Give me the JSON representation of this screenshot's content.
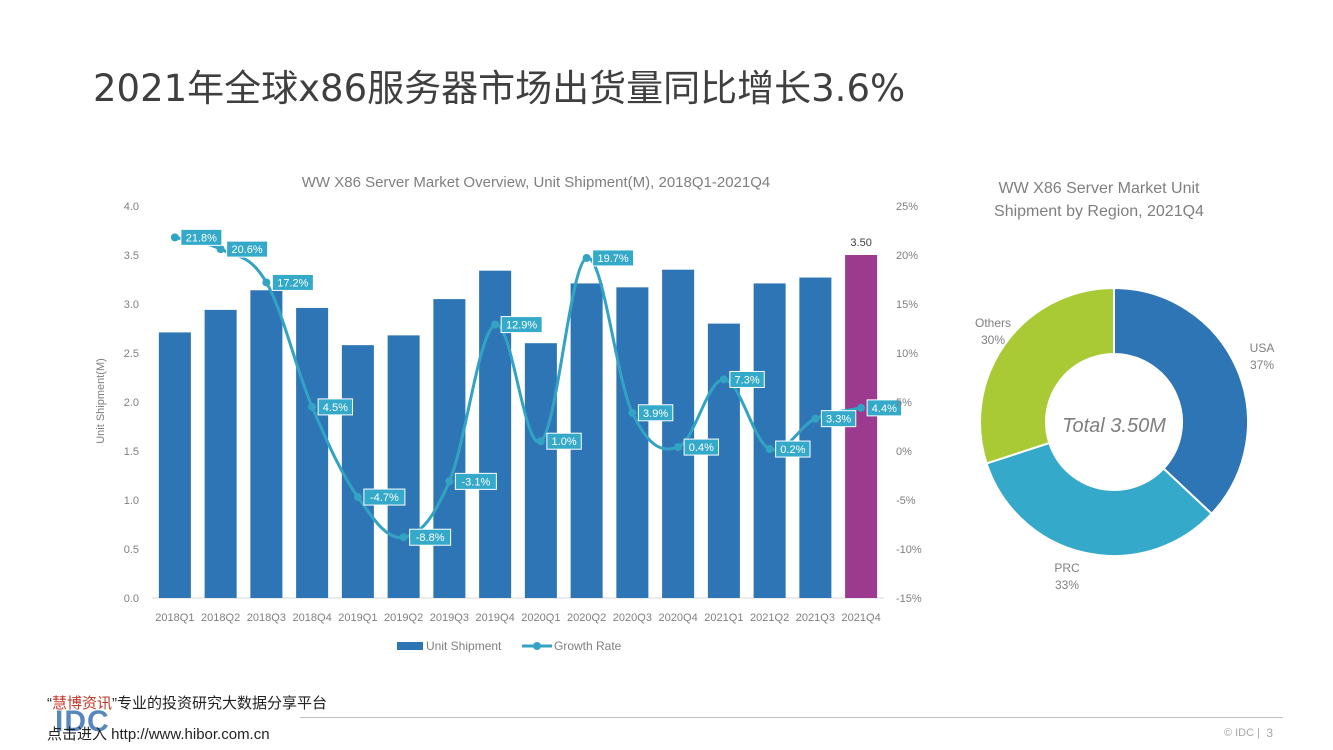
{
  "slide": {
    "title": "2021年全球x86服务器市场出货量同比增长3.6%",
    "footer": "© IDC |",
    "page_number": "3"
  },
  "watermark": {
    "line1_quote_open": "“",
    "line1_brand": "慧博资讯",
    "line1_quote_close": "”",
    "line1_rest": "专业的投资研究大数据分享平台",
    "line2": "点击进入 http://www.hibor.com.cn",
    "logo_text": "IDC"
  },
  "chart_data": [
    {
      "type": "bar",
      "title": "WW X86 Server Market Overview, Unit Shipment(M), 2018Q1-2021Q4",
      "ylabel": "Unit Shipment(M)",
      "ylim": [
        0,
        4.0
      ],
      "yticks": [
        "0.0",
        "0.5",
        "1.0",
        "1.5",
        "2.0",
        "2.5",
        "3.0",
        "3.5",
        "4.0"
      ],
      "y2lim": [
        -15,
        25
      ],
      "y2ticks": [
        "-15%",
        "-10%",
        "-5%",
        "0%",
        "5%",
        "10%",
        "15%",
        "20%",
        "25%"
      ],
      "categories": [
        "2018Q1",
        "2018Q2",
        "2018Q3",
        "2018Q4",
        "2019Q1",
        "2019Q2",
        "2019Q3",
        "2019Q4",
        "2020Q1",
        "2020Q2",
        "2020Q3",
        "2020Q4",
        "2021Q1",
        "2021Q2",
        "2021Q3",
        "2021Q4"
      ],
      "series": [
        {
          "name": "Unit Shipment",
          "kind": "bar",
          "axis": "left",
          "color": "#2e75b6",
          "highlight_color": "#9b3a8f",
          "values": [
            2.71,
            2.94,
            3.14,
            2.96,
            2.58,
            2.68,
            3.05,
            3.34,
            2.6,
            3.21,
            3.17,
            3.35,
            2.8,
            3.21,
            3.27,
            3.5
          ],
          "data_labels": [
            "",
            "",
            "",
            "",
            "",
            "",
            "",
            "",
            "",
            "",
            "",
            "",
            "",
            "",
            "",
            "3.50"
          ]
        },
        {
          "name": "Growth Rate",
          "kind": "line",
          "axis": "right",
          "color": "#33a3c4",
          "values": [
            21.8,
            20.6,
            17.2,
            4.5,
            -4.7,
            -8.8,
            -3.1,
            12.9,
            1.0,
            19.7,
            3.9,
            0.4,
            7.3,
            0.2,
            3.3,
            4.4
          ],
          "data_labels": [
            "21.8%",
            "20.6%",
            "17.2%",
            "4.5%",
            "-4.7%",
            "-8.8%",
            "-3.1%",
            "12.9%",
            "1.0%",
            "19.7%",
            "3.9%",
            "0.4%",
            "7.3%",
            "0.2%",
            "3.3%",
            "4.4%"
          ]
        }
      ],
      "legend": [
        "Unit Shipment",
        "Growth Rate"
      ],
      "legend_position": "bottom",
      "grid": false
    },
    {
      "type": "pie",
      "style": "donut",
      "title": "WW X86 Server Market Unit Shipment by Region, 2021Q4",
      "center_label": "Total 3.50M",
      "slices": [
        {
          "name": "USA",
          "value": 37,
          "label": "37%",
          "color": "#2e75b6"
        },
        {
          "name": "PRC",
          "value": 33,
          "label": "33%",
          "color": "#35a9c9"
        },
        {
          "name": "Others",
          "value": 30,
          "label": "30%",
          "color": "#a9c935"
        }
      ]
    }
  ]
}
